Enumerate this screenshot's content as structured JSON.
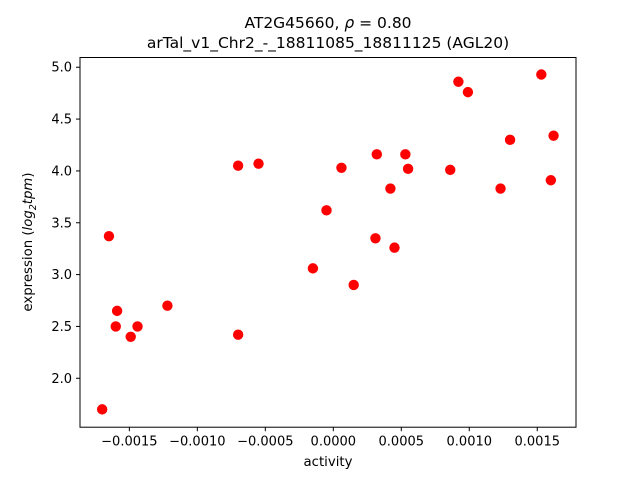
{
  "title": {
    "line1_gene": "AT2G45660, ",
    "line1_rho": "ρ",
    "line1_value": " = 0.80",
    "line2": "arTal_v1_Chr2_-_18811085_18811125 (AGL20)"
  },
  "axes": {
    "xlabel": "activity",
    "ylabel_prefix": "expression (",
    "ylabel_math_main": "log",
    "ylabel_math_sub": "2",
    "ylabel_math_tail": "tpm",
    "ylabel_suffix": ")"
  },
  "chart_data": {
    "type": "scatter",
    "title": "AT2G45660, ρ = 0.80",
    "subtitle": "arTal_v1_Chr2_-_18811085_18811125 (AGL20)",
    "xlabel": "activity",
    "ylabel": "expression (log2tpm)",
    "legend": "none",
    "grid": false,
    "marker": "circle",
    "marker_color": "#ff0000",
    "marker_radius_px": 5.2,
    "xlim": [
      -0.001863,
      0.001785
    ],
    "ylim": [
      1.528,
      5.094
    ],
    "x_ticks": [
      -0.0015,
      -0.001,
      -0.0005,
      0.0,
      0.0005,
      0.001,
      0.0015
    ],
    "x_tick_labels": [
      "−0.0015",
      "−0.0010",
      "−0.0005",
      "0.0000",
      "0.0005",
      "0.0010",
      "0.0015"
    ],
    "y_ticks": [
      2.0,
      2.5,
      3.0,
      3.5,
      4.0,
      4.5,
      5.0
    ],
    "y_tick_labels": [
      "2.0",
      "2.5",
      "3.0",
      "3.5",
      "4.0",
      "4.5",
      "5.0"
    ],
    "points": [
      [
        -0.0017,
        1.7
      ],
      [
        -0.00165,
        3.37
      ],
      [
        -0.0016,
        2.5
      ],
      [
        -0.00159,
        2.65
      ],
      [
        -0.00149,
        2.4
      ],
      [
        -0.00144,
        2.5
      ],
      [
        -0.00122,
        2.7
      ],
      [
        -0.0007,
        4.05
      ],
      [
        -0.0007,
        2.42
      ],
      [
        -0.00055,
        4.07
      ],
      [
        -0.00015,
        3.06
      ],
      [
        -5e-05,
        3.62
      ],
      [
        6e-05,
        4.03
      ],
      [
        0.00015,
        2.9
      ],
      [
        0.00031,
        3.35
      ],
      [
        0.00032,
        4.16
      ],
      [
        0.00042,
        3.83
      ],
      [
        0.00045,
        3.26
      ],
      [
        0.00053,
        4.16
      ],
      [
        0.00055,
        4.02
      ],
      [
        0.00086,
        4.01
      ],
      [
        0.00092,
        4.86
      ],
      [
        0.00099,
        4.76
      ],
      [
        0.00123,
        3.83
      ],
      [
        0.0013,
        4.3
      ],
      [
        0.00153,
        4.93
      ],
      [
        0.0016,
        3.91
      ],
      [
        0.00162,
        4.34
      ]
    ]
  }
}
